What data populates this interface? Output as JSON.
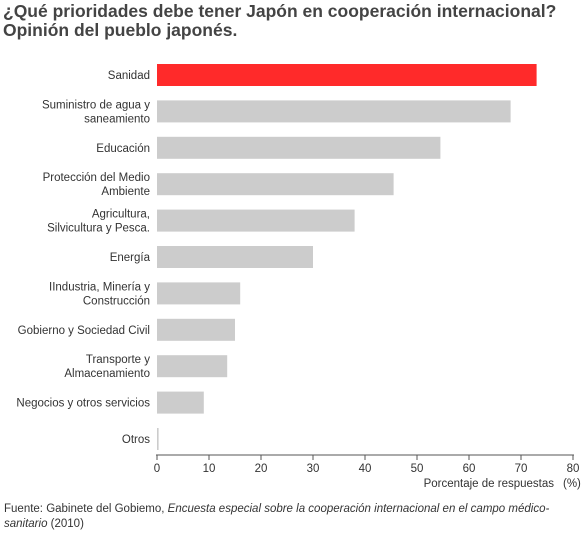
{
  "title": {
    "line1": "¿Qué prioridades debe tener Japón en cooperación internacional?",
    "line2": "Opinión del pueblo japonés."
  },
  "chart_data": {
    "type": "bar",
    "orientation": "horizontal",
    "categories": [
      [
        "Sanidad"
      ],
      [
        "Suministro de agua y",
        "saneamiento"
      ],
      [
        "Educación"
      ],
      [
        "Protección del Medio",
        "Ambiente"
      ],
      [
        "Agricultura,",
        "Silvicultura y Pesca."
      ],
      [
        "Energía"
      ],
      [
        "IIndustria, Minería y",
        "Construcción"
      ],
      [
        "Gobierno y Sociedad Civil"
      ],
      [
        "Transporte y",
        "Almacenamiento"
      ],
      [
        "Negocios y otros servicios"
      ],
      [
        "Otros"
      ]
    ],
    "values": [
      73,
      68,
      54.5,
      45.5,
      38,
      30,
      16,
      15,
      13.5,
      9,
      0.3
    ],
    "colors": [
      "#ff2a2a",
      "#cccccc",
      "#cccccc",
      "#cccccc",
      "#cccccc",
      "#cccccc",
      "#cccccc",
      "#cccccc",
      "#cccccc",
      "#cccccc",
      "#cccccc"
    ],
    "xlim": [
      0,
      80
    ],
    "xticks": [
      0,
      10,
      20,
      30,
      40,
      50,
      60,
      70,
      80
    ],
    "xlabel": "Porcentaje de respuestas",
    "xunit": "(%)",
    "grid": false
  },
  "source": {
    "prefix": "Fuente: Gabinete del Gobiemo, ",
    "title_italic": "Encuesta especial sobre la cooperación internacional en el campo médico-sanitario",
    "suffix": " (2010)"
  }
}
